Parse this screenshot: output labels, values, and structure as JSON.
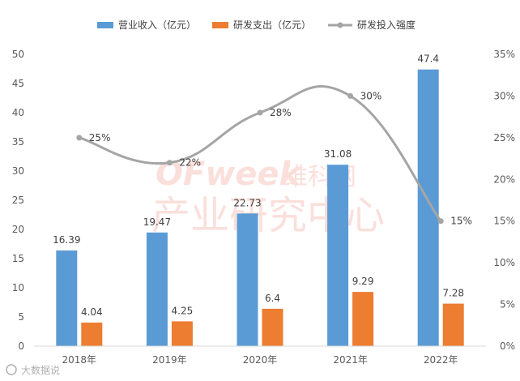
{
  "chart_data": {
    "type": "bar",
    "categories": [
      "2018年",
      "2019年",
      "2020年",
      "2021年",
      "2022年"
    ],
    "series": [
      {
        "name": "营业收入（亿元）",
        "type": "bar",
        "axis": "left",
        "color": "#5b9bd5",
        "values": [
          16.39,
          19.47,
          22.73,
          31.08,
          47.4
        ],
        "labels": [
          "16.39",
          "19.47",
          "22.73",
          "31.08",
          "47.4"
        ]
      },
      {
        "name": "研发支出（亿元）",
        "type": "bar",
        "axis": "left",
        "color": "#ed7d31",
        "values": [
          4.04,
          4.25,
          6.4,
          9.29,
          7.28
        ],
        "labels": [
          "4.04",
          "4.25",
          "6.4",
          "9.29",
          "7.28"
        ]
      },
      {
        "name": "研发投入强度",
        "type": "line",
        "axis": "right",
        "color": "#a5a5a5",
        "values": [
          25,
          22,
          28,
          30,
          15
        ],
        "labels": [
          "25%",
          "22%",
          "28%",
          "30%",
          "15%"
        ]
      }
    ],
    "y_left": {
      "min": 0,
      "max": 50,
      "step": 5,
      "ticks": [
        "0",
        "5",
        "10",
        "15",
        "20",
        "25",
        "30",
        "35",
        "40",
        "45",
        "50"
      ]
    },
    "y_right": {
      "min": 0,
      "max": 35,
      "step": 5,
      "ticks": [
        "0%",
        "5%",
        "10%",
        "15%",
        "20%",
        "25%",
        "30%",
        "35%"
      ]
    },
    "legend_position": "top",
    "grid": false
  },
  "watermark": {
    "logo_latin": "OFweek",
    "logo_cn": "维科网",
    "center_text": "产业研究中心",
    "corner_text": "大数据说"
  }
}
